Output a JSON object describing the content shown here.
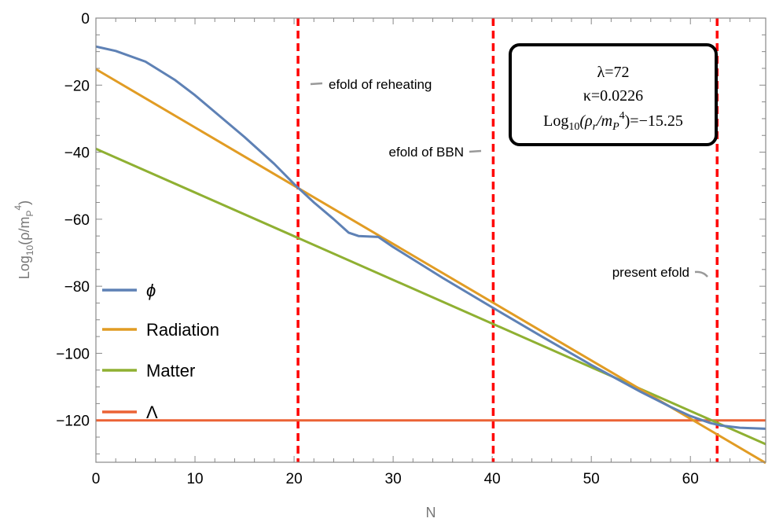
{
  "chart_data": {
    "type": "line",
    "xlabel": "N",
    "ylabel": "Log10(ρ/mP^4)",
    "xlim": [
      0,
      67.6
    ],
    "ylim": [
      -132.5,
      0
    ],
    "x_ticks": [
      0,
      10,
      20,
      30,
      40,
      50,
      60
    ],
    "y_ticks": [
      0,
      -20,
      -40,
      -60,
      -80,
      -100,
      -120
    ],
    "grid": false,
    "legend_position": "left",
    "series": [
      {
        "name": "ϕ",
        "color": "#5E81B5",
        "x": [
          0,
          2,
          5,
          8,
          10,
          12,
          15,
          18,
          20,
          22,
          24,
          25.5,
          26.5,
          28.5,
          30,
          35,
          40,
          45,
          50,
          55,
          58,
          60,
          62,
          63,
          65,
          67.6
        ],
        "y": [
          -8.5,
          -9.8,
          -13,
          -18.5,
          -23,
          -28,
          -35.5,
          -43.5,
          -49.5,
          -55,
          -60,
          -64,
          -65,
          -65.3,
          -68.3,
          -77.5,
          -86.3,
          -95,
          -103.5,
          -111.5,
          -116,
          -118.7,
          -120.8,
          -121.5,
          -122.2,
          -122.5
        ]
      },
      {
        "name": "Radiation",
        "color": "#E19C24",
        "x": [
          0,
          67.6
        ],
        "y": [
          -15.25,
          -132.7
        ]
      },
      {
        "name": "Matter",
        "color": "#8FB032",
        "x": [
          0,
          67.6
        ],
        "y": [
          -39,
          -127.1
        ]
      },
      {
        "name": "Λ",
        "color": "#EB6235",
        "x": [
          0,
          67.6
        ],
        "y": [
          -120,
          -120
        ]
      }
    ],
    "vertical_lines": [
      {
        "x": 20.4,
        "label": "efold of reheating",
        "color": "#FF0000"
      },
      {
        "x": 40.1,
        "label": "efold of BBN",
        "color": "#FF0000"
      },
      {
        "x": 62.7,
        "label": "present efold",
        "color": "#FF0000"
      }
    ],
    "annotation_box": {
      "lambda": "λ=72",
      "kappa": "κ=0.0226",
      "rho_prefix": "Log",
      "rho_sub": "10",
      "rho_mid": "(ρ",
      "rho_sub2": "r",
      "rho_mid2": "/m",
      "rho_sub3": "P",
      "rho_sup": "4",
      "rho_suffix": ")=−15.25"
    },
    "ylabel_parts": {
      "a": "Log",
      "sub": "10",
      "b": "(ρ/m",
      "sub2": "P",
      "sup": "4",
      "c": ")"
    }
  }
}
